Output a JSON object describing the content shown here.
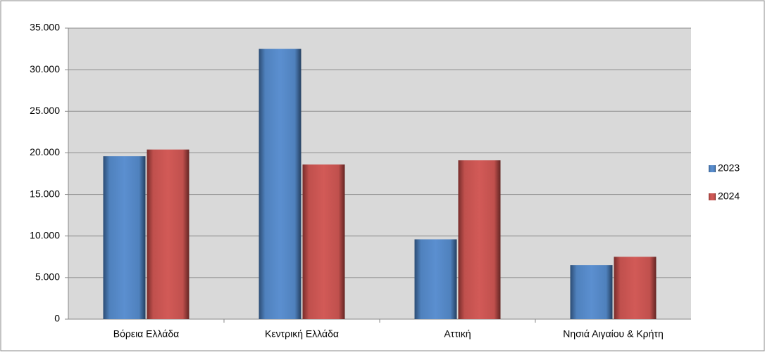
{
  "chart_data": {
    "type": "bar",
    "categories": [
      "Βόρεια Ελλάδα",
      "Κεντρική Ελλάδα",
      "Αττική",
      "Νησιά Αιγαίου & Κρήτη"
    ],
    "series": [
      {
        "name": "2023",
        "color": "#4f81bd",
        "values": [
          19600,
          32500,
          9600,
          6500
        ]
      },
      {
        "name": "2024",
        "color": "#c0504d",
        "values": [
          20400,
          18600,
          19100,
          7500
        ]
      }
    ],
    "ylim": [
      0,
      35000
    ],
    "yticks": [
      0,
      {
        "value": 5000,
        "label": "5.000"
      },
      {
        "value": 10000,
        "label": "10.000"
      },
      {
        "value": 15000,
        "label": "15.000"
      },
      {
        "value": 20000,
        "label": "20.000"
      },
      {
        "value": 25000,
        "label": "25.000"
      },
      {
        "value": 30000,
        "label": "30.000"
      },
      {
        "value": 35000,
        "label": "35.000"
      }
    ],
    "grid": true,
    "legend": "right"
  }
}
